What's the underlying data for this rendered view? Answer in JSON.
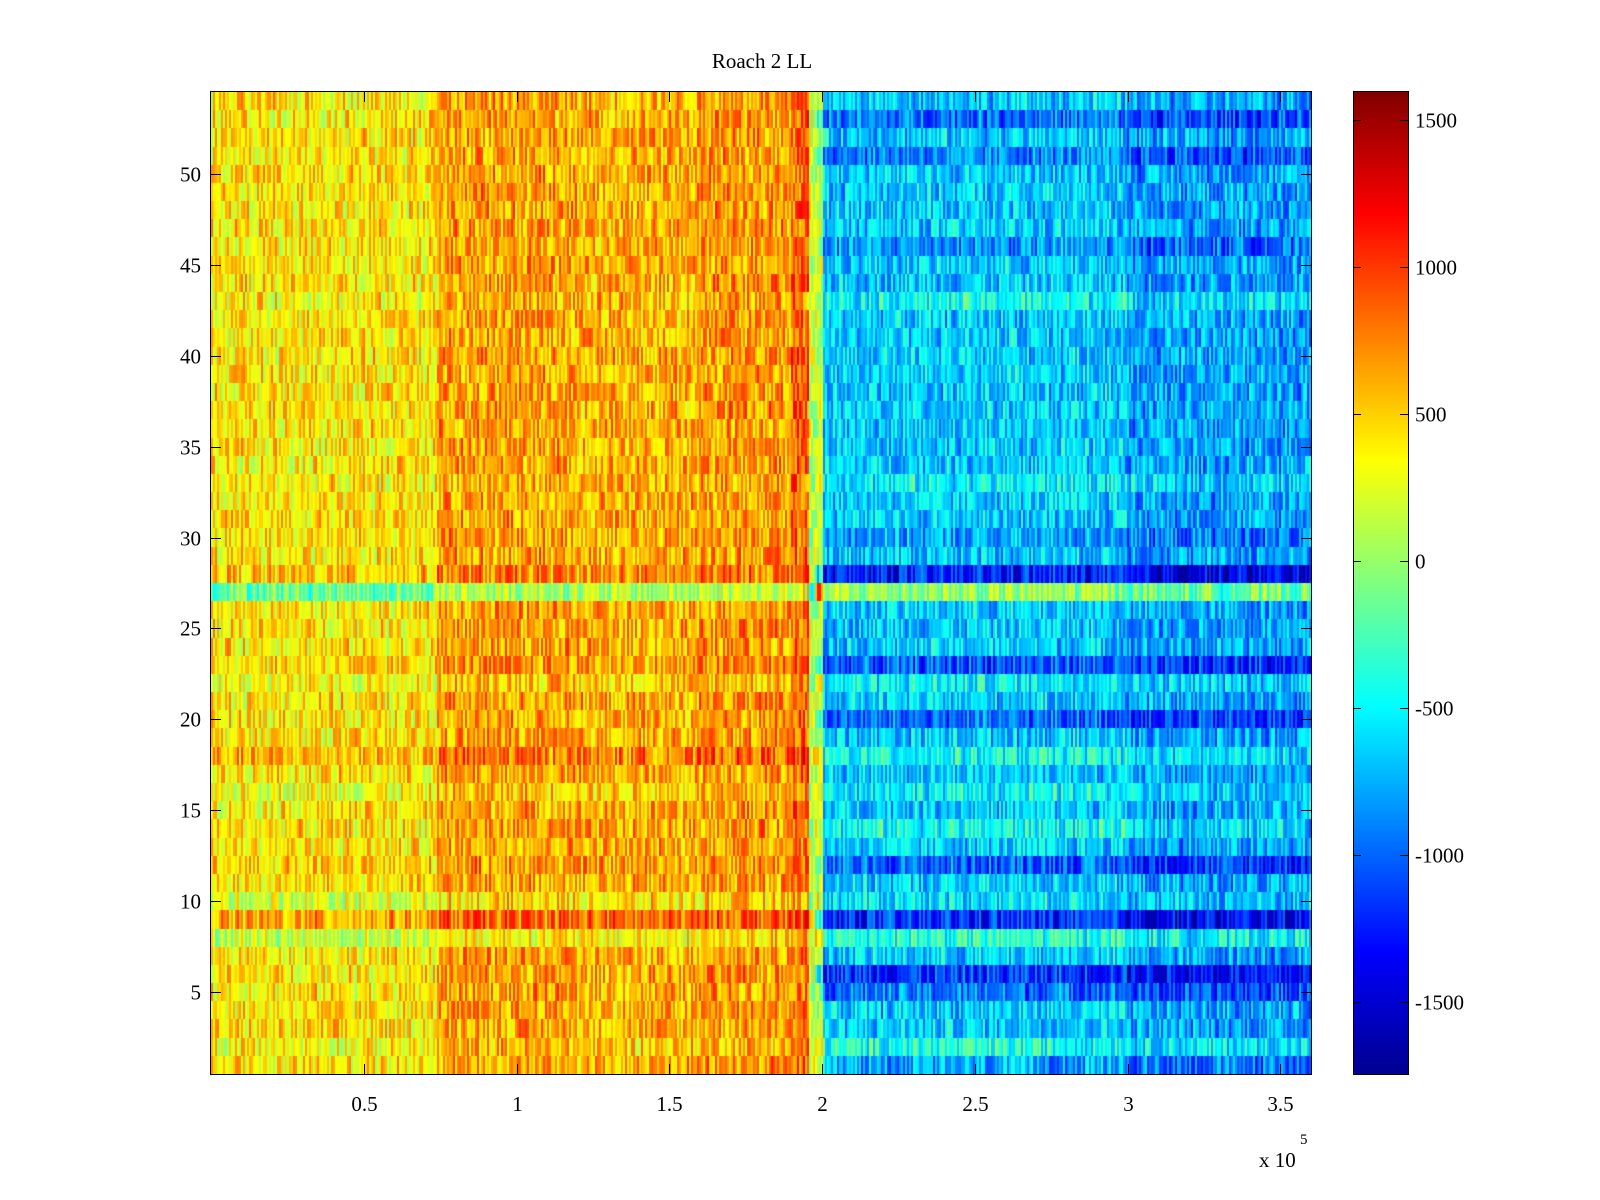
{
  "chart_data": {
    "type": "heatmap",
    "title": "Roach 2 LL",
    "xlabel": "",
    "ylabel": "",
    "x_multiplier_label": "x 10",
    "x_multiplier_exponent": "5",
    "xlim": [
      0,
      360000
    ],
    "ylim": [
      0.5,
      54.5
    ],
    "x_ticks": [
      {
        "value": 0.5,
        "label": "0.5"
      },
      {
        "value": 1,
        "label": "1"
      },
      {
        "value": 1.5,
        "label": "1.5"
      },
      {
        "value": 2,
        "label": "2"
      },
      {
        "value": 2.5,
        "label": "2.5"
      },
      {
        "value": 3,
        "label": "3"
      },
      {
        "value": 3.5,
        "label": "3.5"
      }
    ],
    "y_ticks": [
      {
        "value": 5,
        "label": "5"
      },
      {
        "value": 10,
        "label": "10"
      },
      {
        "value": 15,
        "label": "15"
      },
      {
        "value": 20,
        "label": "20"
      },
      {
        "value": 25,
        "label": "25"
      },
      {
        "value": 30,
        "label": "30"
      },
      {
        "value": 35,
        "label": "35"
      },
      {
        "value": 40,
        "label": "40"
      },
      {
        "value": 45,
        "label": "45"
      },
      {
        "value": 50,
        "label": "50"
      }
    ],
    "rows": 54,
    "colormap": "jet",
    "colorbar": {
      "range": [
        -1750,
        1600
      ],
      "ticks": [
        {
          "value": 1500,
          "label": "1500"
        },
        {
          "value": 1000,
          "label": "1000"
        },
        {
          "value": 500,
          "label": "500"
        },
        {
          "value": 0,
          "label": "0"
        },
        {
          "value": -500,
          "label": "-500"
        },
        {
          "value": -1000,
          "label": "-1000"
        },
        {
          "value": -1500,
          "label": "-1500"
        }
      ]
    },
    "column_profile": [
      {
        "x_start": 0,
        "x_end": 74000,
        "mean": 420
      },
      {
        "x_start": 74000,
        "x_end": 120000,
        "mean": 650
      },
      {
        "x_start": 120000,
        "x_end": 160000,
        "mean": 600
      },
      {
        "x_start": 160000,
        "x_end": 190000,
        "mean": 680
      },
      {
        "x_start": 190000,
        "x_end": 196000,
        "mean": 850
      },
      {
        "x_start": 196000,
        "x_end": 200000,
        "mean": 150
      },
      {
        "x_start": 200000,
        "x_end": 300000,
        "mean": -650
      },
      {
        "x_start": 300000,
        "x_end": 360000,
        "mean": -800
      }
    ],
    "row_offsets": [
      {
        "row": 1,
        "left": 0,
        "right": -150
      },
      {
        "row": 2,
        "left": -80,
        "right": 250
      },
      {
        "row": 5,
        "left": 0,
        "right": -300
      },
      {
        "row": 6,
        "left": 0,
        "right": -500
      },
      {
        "row": 8,
        "left": -250,
        "right": 300
      },
      {
        "row": 9,
        "left": 200,
        "right": -550
      },
      {
        "row": 10,
        "left": -200,
        "right": 100
      },
      {
        "row": 12,
        "left": 50,
        "right": -350
      },
      {
        "row": 14,
        "left": 0,
        "right": 200
      },
      {
        "row": 16,
        "left": -100,
        "right": 150
      },
      {
        "row": 18,
        "left": 150,
        "right": 200
      },
      {
        "row": 20,
        "left": 0,
        "right": -350
      },
      {
        "row": 22,
        "left": -100,
        "right": 150
      },
      {
        "row": 23,
        "left": 50,
        "right": -400
      },
      {
        "row": 27,
        "left": -550,
        "right": 650
      },
      {
        "row": 28,
        "left": 100,
        "right": -600
      },
      {
        "row": 30,
        "left": 0,
        "right": -150
      },
      {
        "row": 33,
        "left": -50,
        "right": 150
      },
      {
        "row": 43,
        "left": -50,
        "right": 200
      },
      {
        "row": 46,
        "left": 0,
        "right": -200
      },
      {
        "row": 51,
        "left": 0,
        "right": -250
      },
      {
        "row": 53,
        "left": 0,
        "right": -300
      }
    ],
    "noise_amplitude": 450
  }
}
